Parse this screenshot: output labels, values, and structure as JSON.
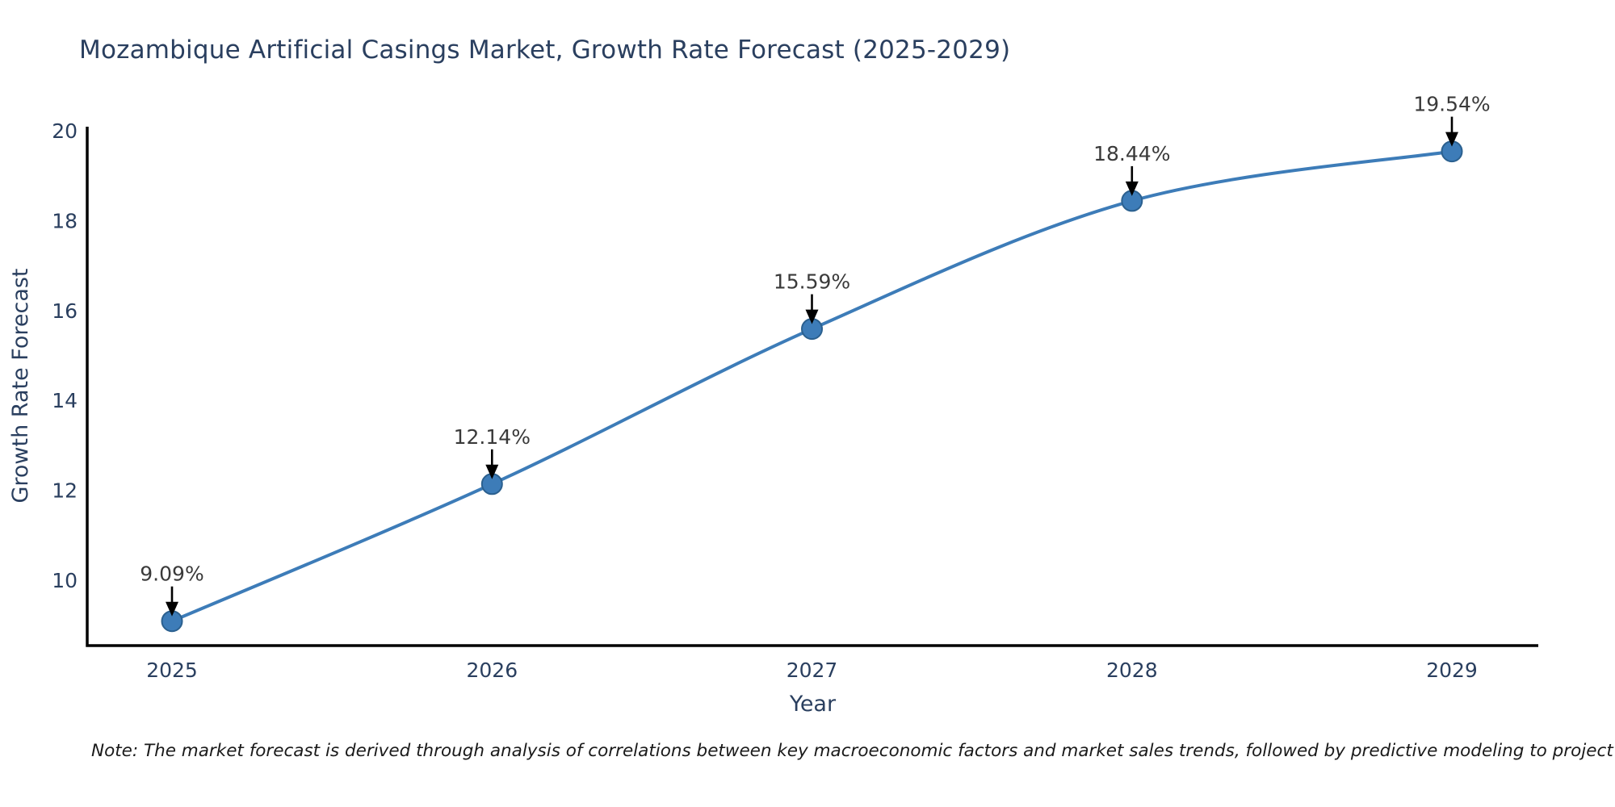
{
  "page": {
    "title": "Mozambique Artificial Casings Market, Growth Rate Forecast (2025-2029)",
    "note": "Note: The market forecast is derived through analysis of correlations between key macroeconomic factors and market sales trends, followed by predictive modeling to project future sales"
  },
  "chart_data": {
    "type": "line",
    "title": "Mozambique Artificial Casings Market, Growth Rate Forecast (2025-2029)",
    "xlabel": "Year",
    "ylabel": "Growth Rate Forecast",
    "x": [
      2025,
      2026,
      2027,
      2028,
      2029
    ],
    "values": [
      9.09,
      12.14,
      15.59,
      18.44,
      19.54
    ],
    "point_labels": [
      "9.09%",
      "12.14%",
      "15.59%",
      "18.44%",
      "19.54%"
    ],
    "yticks": [
      10,
      12,
      14,
      16,
      18,
      20
    ],
    "xticks": [
      "2025",
      "2026",
      "2027",
      "2028",
      "2029"
    ],
    "ylim": [
      8.55,
      20.1
    ],
    "grid": false,
    "legend": "none",
    "line_shape": "spline",
    "colors": {
      "line": "#3d7cb8",
      "marker_fill": "#3d7cb8",
      "marker_edge": "#2b608f",
      "axis_line": "#000000",
      "tick_text": "#2a3f5f",
      "title_text": "#2a3f5f",
      "annotation_text": "#3a3a3a",
      "arrow": "#000000",
      "note_text": "#1a1a1a"
    }
  }
}
